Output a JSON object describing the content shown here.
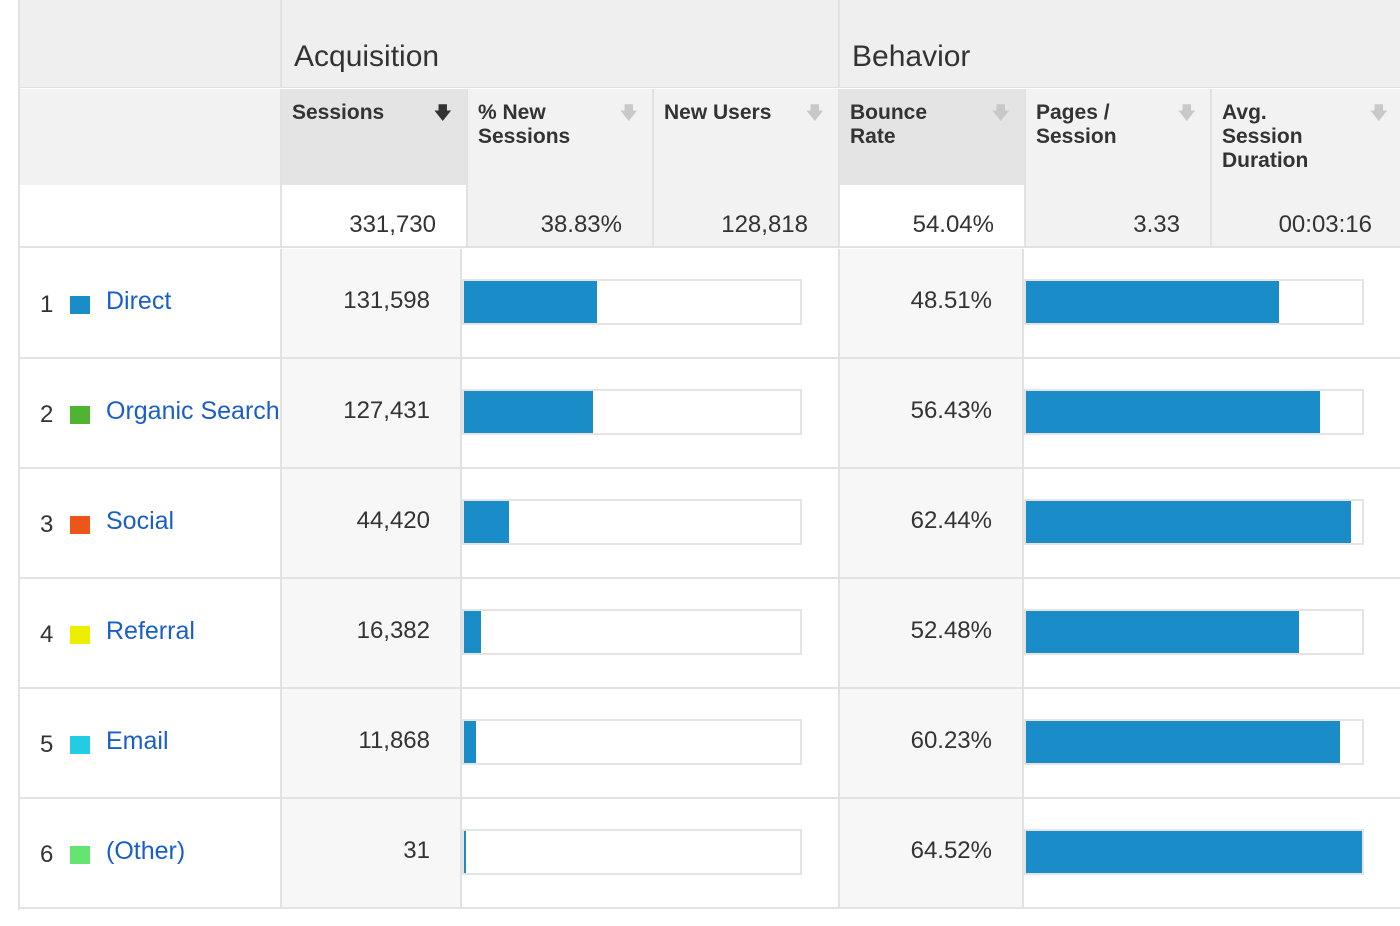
{
  "header": {
    "acquisition": "Acquisition",
    "behavior": "Behavior",
    "columns": [
      {
        "label": "Sessions",
        "sorted": true
      },
      {
        "label": "% New Sessions",
        "sorted": false
      },
      {
        "label": "New Users",
        "sorted": false
      },
      {
        "label": "Bounce Rate",
        "sorted": false
      },
      {
        "label": "Pages / Session",
        "sorted": false
      },
      {
        "label": "Avg. Session Duration",
        "sorted": false
      }
    ],
    "sort_icon": "sort-down-arrow-icon"
  },
  "totals": {
    "sessions": "331,730",
    "pct_new_sessions": "38.83%",
    "new_users": "128,818",
    "bounce_rate": "54.04%",
    "pages_per_session": "3.33",
    "avg_session_duration": "00:03:16"
  },
  "rows": [
    {
      "index": "1",
      "name": "Direct",
      "color": "#1a8cc8",
      "sessions": "131,598",
      "sessions_share": 0.3967,
      "bounce_rate": "48.51%",
      "bounce_value": 48.51
    },
    {
      "index": "2",
      "name": "Organic Search",
      "color": "#50b432",
      "sessions": "127,431",
      "sessions_share": 0.3841,
      "bounce_rate": "56.43%",
      "bounce_value": 56.43
    },
    {
      "index": "3",
      "name": "Social",
      "color": "#ed561b",
      "sessions": "44,420",
      "sessions_share": 0.1339,
      "bounce_rate": "62.44%",
      "bounce_value": 62.44
    },
    {
      "index": "4",
      "name": "Referral",
      "color": "#edef00",
      "sessions": "16,382",
      "sessions_share": 0.0494,
      "bounce_rate": "52.48%",
      "bounce_value": 52.48
    },
    {
      "index": "5",
      "name": "Email",
      "color": "#24cbe5",
      "sessions": "11,868",
      "sessions_share": 0.0358,
      "bounce_rate": "60.23%",
      "bounce_value": 60.23
    },
    {
      "index": "6",
      "name": "(Other)",
      "color": "#64e572",
      "sessions": "31",
      "sessions_share": 0.0001,
      "bounce_rate": "64.52%",
      "bounce_value": 64.52
    }
  ],
  "bounce_scale_max": 64.52
}
